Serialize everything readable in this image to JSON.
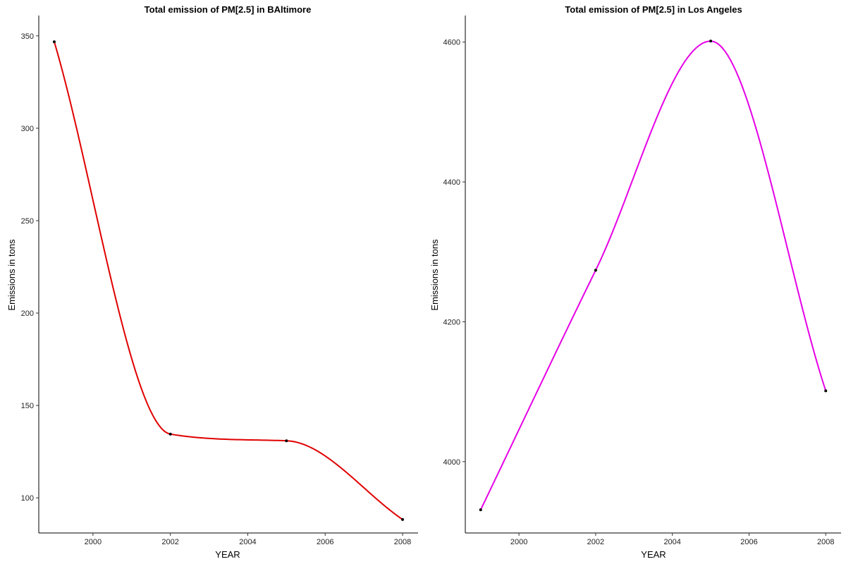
{
  "chart_data": [
    {
      "type": "line",
      "title": "Total emission of PM[2.5] in BAltimore",
      "xlabel": "YEAR",
      "ylabel": "Emissions in tons",
      "x": [
        1999,
        2002,
        2005,
        2008
      ],
      "series": [
        {
          "values": [
            346.8,
            134.5,
            130.9,
            88.3
          ],
          "color": "#e00000"
        }
      ],
      "xticks": [
        "2000",
        "2002",
        "2004",
        "2006",
        "2008"
      ],
      "yticks": [
        "100",
        "150",
        "200",
        "250",
        "300",
        "350"
      ],
      "xlim": [
        1998.6,
        2008.4
      ],
      "ylim": [
        81,
        361
      ],
      "grid": false,
      "smooth": true,
      "point_color": "#000000"
    },
    {
      "type": "line",
      "title": "Total emission of PM[2.5] in Los Angeles",
      "xlabel": "YEAR",
      "ylabel": "Emissions in tons",
      "x": [
        1999,
        2002,
        2005,
        2008
      ],
      "series": [
        {
          "values": [
            3931.1,
            4273.7,
            4601.4,
            4101.3
          ],
          "color": "#e600e6"
        }
      ],
      "xticks": [
        "2000",
        "2002",
        "2004",
        "2006",
        "2008"
      ],
      "yticks": [
        "4000",
        "4200",
        "4400",
        "4600"
      ],
      "xlim": [
        1998.6,
        2008.4
      ],
      "ylim": [
        3898,
        4638
      ],
      "grid": false,
      "smooth": true,
      "point_color": "#000000"
    }
  ]
}
